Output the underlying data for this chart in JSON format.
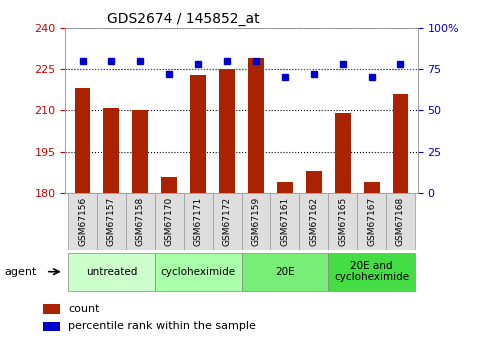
{
  "title": "GDS2674 / 145852_at",
  "samples": [
    "GSM67156",
    "GSM67157",
    "GSM67158",
    "GSM67170",
    "GSM67171",
    "GSM67172",
    "GSM67159",
    "GSM67161",
    "GSM67162",
    "GSM67165",
    "GSM67167",
    "GSM67168"
  ],
  "counts": [
    218,
    211,
    210,
    186,
    223,
    225,
    229,
    184,
    188,
    209,
    184,
    216
  ],
  "percentiles": [
    80,
    80,
    80,
    72,
    78,
    80,
    80,
    70,
    72,
    78,
    70,
    78
  ],
  "ylim_left": [
    180,
    240
  ],
  "ylim_right": [
    0,
    100
  ],
  "yticks_left": [
    180,
    195,
    210,
    225,
    240
  ],
  "yticks_right": [
    0,
    25,
    50,
    75,
    100
  ],
  "bar_color": "#aa2200",
  "dot_color": "#0000cc",
  "dot_line_color": "#4444cc",
  "grid_color": "#000000",
  "agent_groups": [
    {
      "label": "untreated",
      "start": 0,
      "end": 3,
      "color": "#ccffcc"
    },
    {
      "label": "cycloheximide",
      "start": 3,
      "end": 6,
      "color": "#aaffaa"
    },
    {
      "label": "20E",
      "start": 6,
      "end": 9,
      "color": "#77ee77"
    },
    {
      "label": "20E and\ncycloheximide",
      "start": 9,
      "end": 12,
      "color": "#44dd44"
    }
  ],
  "legend_count_label": "count",
  "legend_pct_label": "percentile rank within the sample",
  "xlabel_agent": "agent",
  "tick_label_color_left": "#cc0000",
  "tick_label_color_right": "#0000cc",
  "bar_bottom": 180,
  "title_fontsize": 10,
  "tick_fontsize": 8,
  "sample_fontsize": 6.5,
  "legend_fontsize": 8,
  "group_fontsize": 7.5
}
